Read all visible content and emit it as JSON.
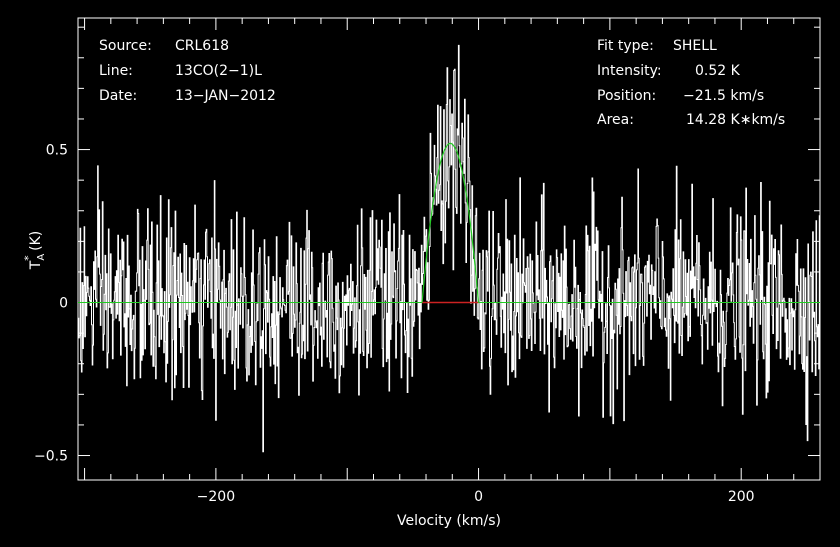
{
  "chart_data": {
    "type": "line",
    "xlabel": "Velocity (km/s)",
    "ylabel_main": "T",
    "ylabel_sub": "A",
    "ylabel_sup": "*",
    "ylabel_unit": " (K)",
    "xlim": [
      -305,
      260
    ],
    "ylim": [
      -0.58,
      0.93
    ],
    "x_ticks": [
      -200,
      0,
      200
    ],
    "x_tick_labels": [
      "−200",
      "0",
      "200"
    ],
    "y_ticks": [
      -0.5,
      0,
      0.5
    ],
    "y_tick_labels": [
      "−0.5",
      "0",
      "0.5"
    ],
    "info_left": [
      {
        "key": "Source:",
        "value": "CRL618"
      },
      {
        "key": "Line:",
        "value": "13CO(2−1)L"
      },
      {
        "key": "Date:",
        "value": "13−JAN−2012"
      }
    ],
    "info_right": [
      {
        "key": "Fit type:",
        "value": "SHELL"
      },
      {
        "key": "Intensity:",
        "value": "0.52 K"
      },
      {
        "key": "Position:",
        "value": "−21.5 km/s"
      },
      {
        "key": "Area:",
        "value": "14.28 K∗km/s"
      }
    ],
    "fit": {
      "intensity": 0.52,
      "position": -21.5,
      "line_min": -43,
      "line_max": 0,
      "noise_rms": 0.15
    },
    "colors": {
      "background": "#000000",
      "spectrum": "#ffffff",
      "fit": "#22cc22",
      "baseline_window": "#cc2222",
      "axes": "#ffffff"
    }
  }
}
